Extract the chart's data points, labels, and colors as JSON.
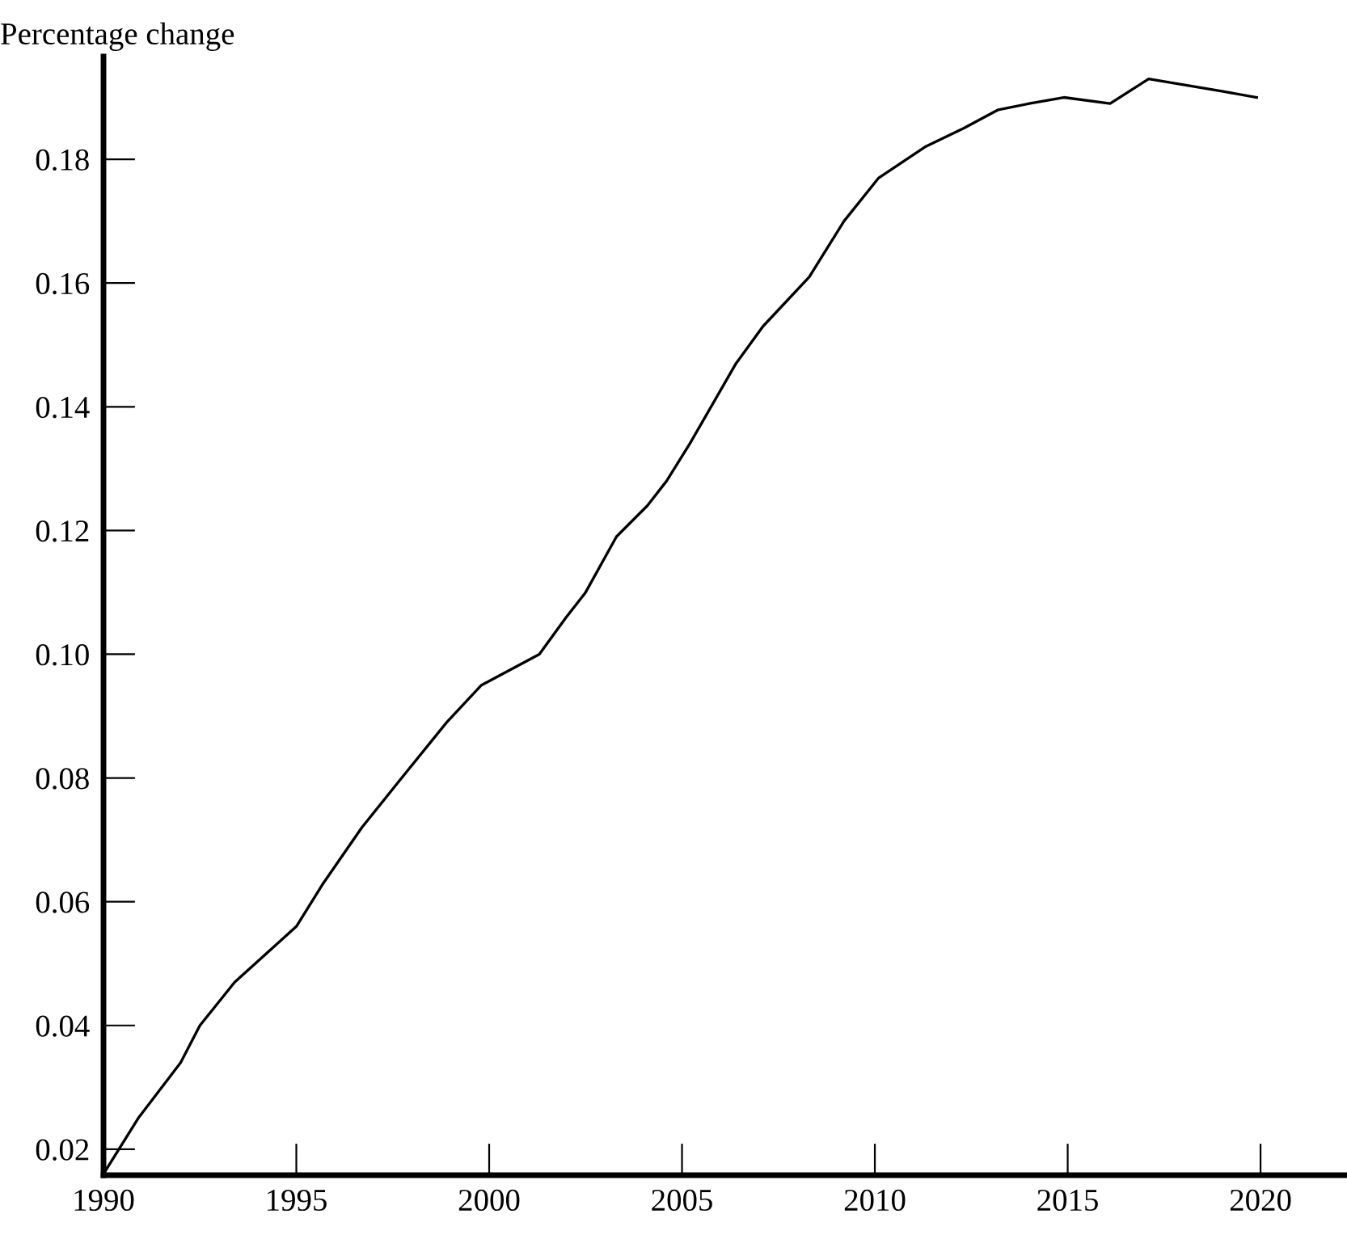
{
  "chart_data": {
    "type": "line",
    "ylabel": "Percentage change",
    "color": "#000000",
    "x": [
      1990.0,
      1990.9,
      1992.0,
      1992.5,
      1993.4,
      1995.0,
      1995.7,
      1996.7,
      1997.6,
      1998.9,
      1999.8,
      2001.3,
      2002.0,
      2002.5,
      2003.3,
      2004.1,
      2004.6,
      2005.2,
      2006.4,
      2007.1,
      2008.3,
      2009.2,
      2010.1,
      2011.3,
      2012.3,
      2013.2,
      2014.0,
      2014.9,
      2016.1,
      2017.1,
      2019.0,
      2019.9
    ],
    "values": [
      0.016,
      0.025,
      0.034,
      0.04,
      0.047,
      0.056,
      0.063,
      0.072,
      0.079,
      0.089,
      0.095,
      0.1,
      0.106,
      0.11,
      0.119,
      0.124,
      0.128,
      0.134,
      0.147,
      0.153,
      0.161,
      0.17,
      0.177,
      0.182,
      0.185,
      0.188,
      0.189,
      0.19,
      0.189,
      0.193,
      0.191,
      0.19
    ],
    "xlim": [
      1990,
      2022.2
    ],
    "ylim": [
      0.0158,
      0.1966
    ],
    "xticks": [
      1990,
      1995,
      2000,
      2005,
      2010,
      2015,
      2020
    ],
    "yticks": [
      {
        "value": 0.02,
        "label": "0.02"
      },
      {
        "value": 0.04,
        "label": "0.04"
      },
      {
        "value": 0.06,
        "label": "0.06"
      },
      {
        "value": 0.08,
        "label": "0.08"
      },
      {
        "value": 0.1,
        "label": "0.10"
      },
      {
        "value": 0.12,
        "label": "0.12"
      },
      {
        "value": 0.14,
        "label": "0.14"
      },
      {
        "value": 0.16,
        "label": "0.16"
      },
      {
        "value": 0.18,
        "label": "0.18"
      }
    ],
    "grid": false,
    "legend": false,
    "marker": "none",
    "line_style": "solid"
  }
}
